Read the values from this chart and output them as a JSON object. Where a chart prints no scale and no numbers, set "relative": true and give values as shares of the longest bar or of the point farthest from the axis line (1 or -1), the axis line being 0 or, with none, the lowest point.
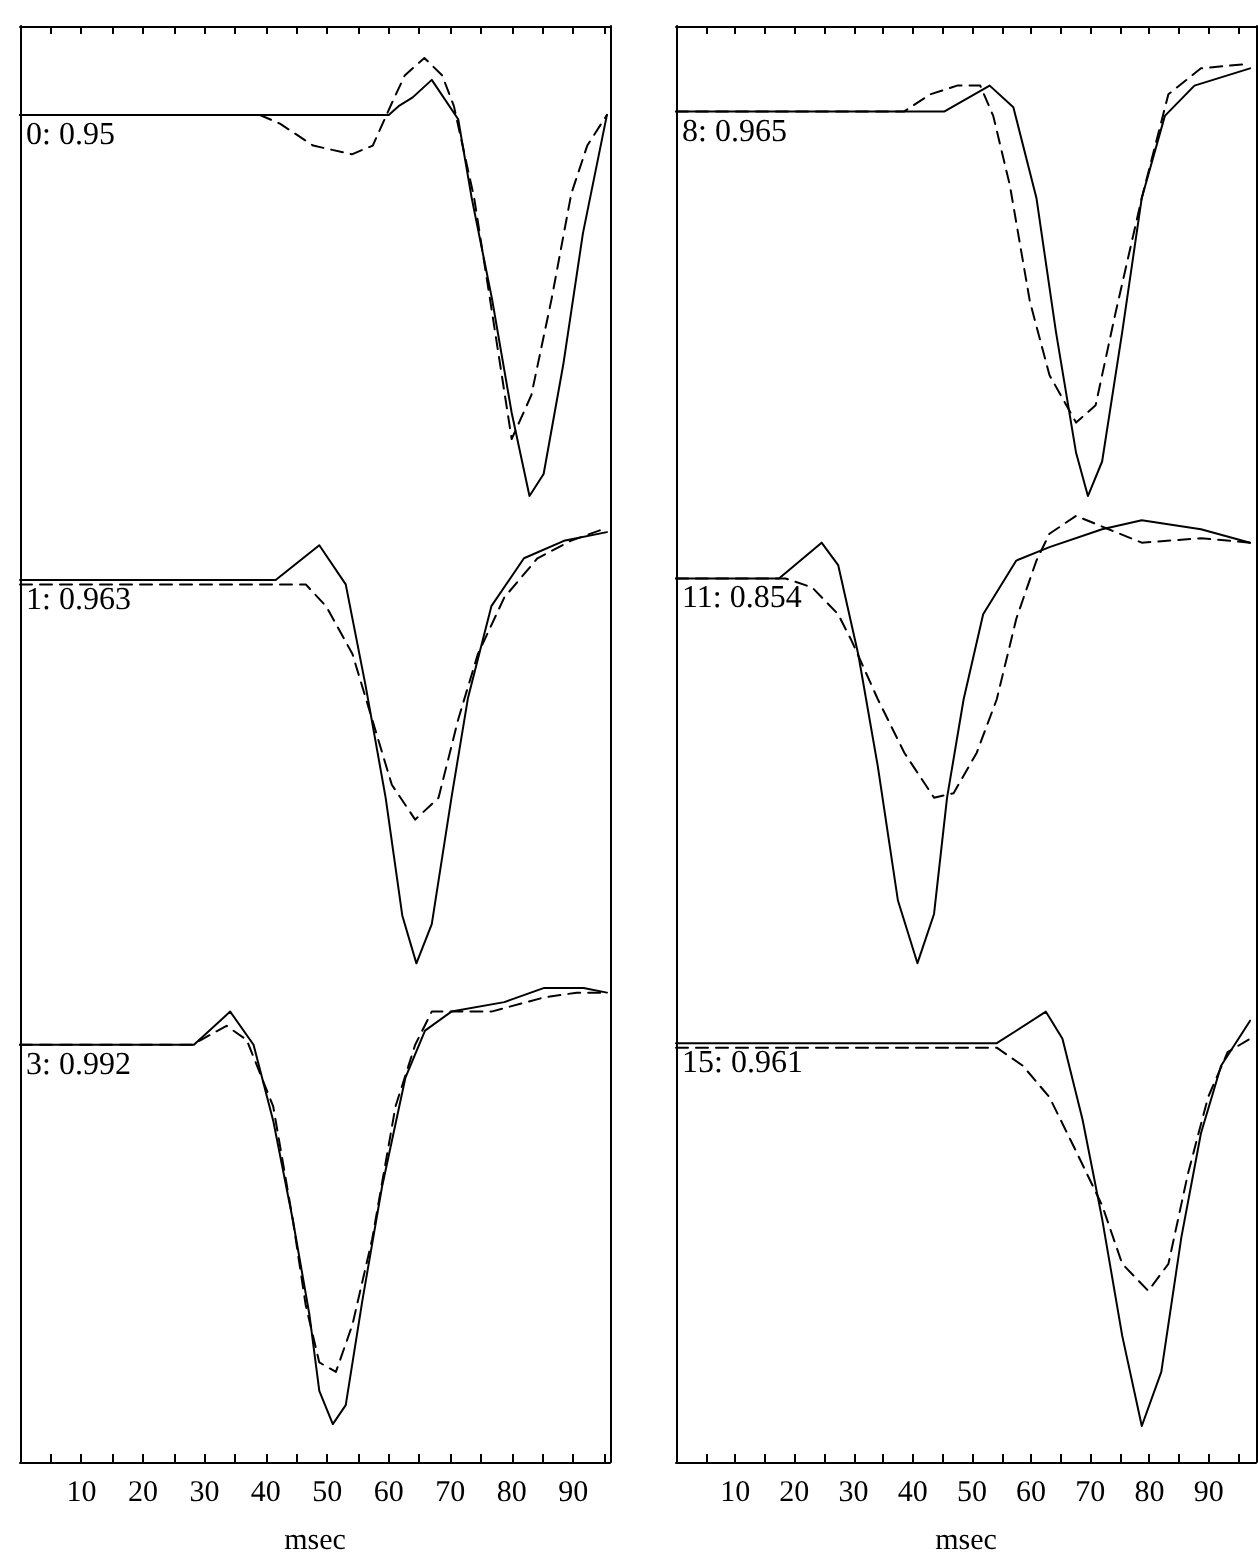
{
  "chart_data": [
    {
      "type": "line",
      "relative": true,
      "annotations": [
        "0: 0.95"
      ],
      "xlim": [
        0,
        96
      ],
      "tick_labels": false,
      "grid": false,
      "marker": "none",
      "series": [
        {
          "color": "#000000",
          "line_style": "solid",
          "x": [
            0,
            60,
            61.6,
            63.9,
            67,
            71.3,
            73.5,
            76.8,
            80,
            82.9,
            85.2,
            88.4,
            91.6,
            95.5
          ],
          "values": [
            0.87,
            0.87,
            0.89,
            0.91,
            0.95,
            0.86,
            0.68,
            0.45,
            0.19,
            0,
            0.05,
            0.3,
            0.6,
            0.87
          ]
        },
        {
          "color": "#000000",
          "line_style": "dashed",
          "x": [
            0,
            39,
            42.3,
            47.7,
            54,
            57.4,
            60.6,
            62.6,
            65.8,
            68.7,
            70.6,
            73.9,
            76.8,
            80,
            83.2,
            86.5,
            89.7,
            92.3,
            95.5
          ],
          "values": [
            0.87,
            0.87,
            0.85,
            0.8,
            0.78,
            0.8,
            0.9,
            0.96,
            1,
            0.96,
            0.89,
            0.68,
            0.42,
            0.13,
            0.23,
            0.45,
            0.69,
            0.8,
            0.87
          ]
        }
      ]
    },
    {
      "type": "line",
      "relative": true,
      "annotations": [
        "8: 0.965"
      ],
      "xlim": [
        0,
        98
      ],
      "tick_labels": false,
      "grid": false,
      "marker": "none",
      "series": [
        {
          "color": "#000000",
          "line_style": "solid",
          "x": [
            0,
            45.3,
            53,
            57,
            60.9,
            64.2,
            67.6,
            69.6,
            72,
            75.4,
            78.7,
            82.6,
            87.6,
            97
          ],
          "values": [
            0.89,
            0.89,
            0.95,
            0.9,
            0.69,
            0.38,
            0.1,
            0,
            0.08,
            0.38,
            0.69,
            0.88,
            0.95,
            0.99
          ]
        },
        {
          "color": "#000000",
          "line_style": "dashed",
          "x": [
            0,
            38.5,
            43,
            47.5,
            51.4,
            53.6,
            56.4,
            59.8,
            63.1,
            67.6,
            70.9,
            74.2,
            78.7,
            83.2,
            88.7,
            96.5
          ],
          "values": [
            0.89,
            0.89,
            0.93,
            0.95,
            0.95,
            0.88,
            0.72,
            0.45,
            0.28,
            0.17,
            0.21,
            0.42,
            0.69,
            0.93,
            0.99,
            1
          ]
        }
      ]
    },
    {
      "type": "line",
      "relative": true,
      "annotations": [
        "1: 0.963"
      ],
      "xlim": [
        0,
        96
      ],
      "tick_labels": false,
      "grid": false,
      "marker": "none",
      "series": [
        {
          "color": "#000000",
          "line_style": "solid",
          "x": [
            0,
            41.6,
            48.7,
            53,
            56.2,
            59.5,
            62.2,
            64.5,
            67,
            70.2,
            72.9,
            76.7,
            82,
            88.5,
            95.5
          ],
          "values": [
            0.88,
            0.88,
            0.96,
            0.87,
            0.64,
            0.38,
            0.11,
            0,
            0.09,
            0.38,
            0.61,
            0.82,
            0.93,
            0.97,
            0.99
          ]
        },
        {
          "color": "#000000",
          "line_style": "dashed",
          "x": [
            0,
            46.5,
            49.8,
            54.1,
            57.3,
            60.5,
            64.3,
            68.1,
            71.3,
            74.5,
            78.8,
            84.2,
            89.6,
            95.5
          ],
          "values": [
            0.87,
            0.87,
            0.82,
            0.71,
            0.56,
            0.41,
            0.33,
            0.38,
            0.56,
            0.71,
            0.84,
            0.93,
            0.97,
            1
          ]
        }
      ]
    },
    {
      "type": "line",
      "relative": true,
      "annotations": [
        "11: 0.854"
      ],
      "xlim": [
        0,
        98
      ],
      "tick_labels": false,
      "grid": false,
      "marker": "none",
      "series": [
        {
          "color": "#000000",
          "line_style": "solid",
          "x": [
            0,
            17.4,
            24.6,
            27.4,
            30.8,
            34.1,
            37.5,
            40.8,
            43.6,
            45.8,
            48.6,
            51.9,
            57.5,
            63.1,
            72,
            78.7,
            88.7,
            97
          ],
          "values": [
            0.86,
            0.86,
            0.94,
            0.89,
            0.69,
            0.44,
            0.14,
            0,
            0.11,
            0.37,
            0.59,
            0.78,
            0.9,
            0.93,
            0.97,
            0.99,
            0.97,
            0.94
          ]
        },
        {
          "color": "#000000",
          "line_style": "dashed",
          "x": [
            0,
            18.5,
            23,
            27.4,
            29.7,
            34.1,
            38.6,
            43.6,
            46.9,
            50.8,
            54.2,
            57.5,
            60.9,
            63.1,
            67.6,
            73.1,
            78.7,
            88.7,
            97
          ],
          "values": [
            0.86,
            0.86,
            0.84,
            0.78,
            0.72,
            0.59,
            0.47,
            0.37,
            0.38,
            0.47,
            0.59,
            0.77,
            0.9,
            0.96,
            1,
            0.97,
            0.94,
            0.95,
            0.94
          ]
        }
      ]
    },
    {
      "type": "line",
      "relative": true,
      "annotations": [
        "3: 0.992"
      ],
      "xlabel": "msec",
      "xlim": [
        0,
        96
      ],
      "xticks": [
        {
          "value": 5,
          "label": null
        },
        10,
        {
          "value": 15,
          "label": null
        },
        20,
        {
          "value": 25,
          "label": null
        },
        30,
        {
          "value": 35,
          "label": null
        },
        40,
        {
          "value": 45,
          "label": null
        },
        50,
        {
          "value": 55,
          "label": null
        },
        60,
        {
          "value": 65,
          "label": null
        },
        70,
        {
          "value": 75,
          "label": null
        },
        80,
        {
          "value": 85,
          "label": null
        },
        90,
        {
          "value": 95,
          "label": null
        }
      ],
      "tick_labels": "x",
      "grid": false,
      "marker": "none",
      "series": [
        {
          "color": "#000000",
          "line_style": "solid",
          "x": [
            0,
            28.3,
            34.2,
            38,
            41.2,
            44.4,
            47.1,
            48.7,
            50.9,
            53,
            55.7,
            58.9,
            62.7,
            65.9,
            70.2,
            78.8,
            85.3,
            91.7,
            95.5
          ],
          "values": [
            0.88,
            0.88,
            0.95,
            0.88,
            0.72,
            0.51,
            0.31,
            0.15,
            0.08,
            0.12,
            0.34,
            0.58,
            0.81,
            0.91,
            0.95,
            0.97,
            1,
            1,
            0.99
          ]
        },
        {
          "color": "#000000",
          "line_style": "dashed",
          "x": [
            0,
            28,
            29.4,
            33.6,
            36.9,
            41.2,
            44.4,
            46.5,
            48.7,
            51.4,
            54.1,
            57.3,
            61.1,
            64.3,
            67,
            76.7,
            85.3,
            90.6,
            95.5
          ],
          "values": [
            0.88,
            0.88,
            0.89,
            0.92,
            0.89,
            0.75,
            0.51,
            0.33,
            0.21,
            0.19,
            0.29,
            0.47,
            0.75,
            0.88,
            0.95,
            0.95,
            0.98,
            0.99,
            0.99
          ]
        }
      ]
    },
    {
      "type": "line",
      "relative": true,
      "annotations": [
        "15: 0.961"
      ],
      "xlabel": "msec",
      "xlim": [
        0,
        98
      ],
      "xticks": [
        {
          "value": 5,
          "label": null
        },
        10,
        {
          "value": 15,
          "label": null
        },
        20,
        {
          "value": 25,
          "label": null
        },
        30,
        {
          "value": 35,
          "label": null
        },
        40,
        {
          "value": 45,
          "label": null
        },
        50,
        {
          "value": 55,
          "label": null
        },
        60,
        {
          "value": 65,
          "label": null
        },
        70,
        {
          "value": 75,
          "label": null
        },
        80,
        {
          "value": 85,
          "label": null
        },
        90,
        {
          "value": 95,
          "label": null
        }
      ],
      "tick_labels": "x",
      "grid": false,
      "marker": "none",
      "series": [
        {
          "color": "#000000",
          "line_style": "solid",
          "x": [
            0,
            54.2,
            62.5,
            65.3,
            68.7,
            72,
            75.4,
            78.7,
            82,
            85.4,
            88.7,
            92.1,
            97
          ],
          "values": [
            0.93,
            0.93,
            1,
            0.94,
            0.76,
            0.54,
            0.28,
            0.08,
            0.2,
            0.5,
            0.73,
            0.88,
            0.98
          ]
        },
        {
          "color": "#000000",
          "line_style": "dashed",
          "x": [
            0,
            54.2,
            58.6,
            63.1,
            67.6,
            72,
            75.4,
            79.8,
            83.2,
            86.5,
            89.9,
            93.2,
            97
          ],
          "values": [
            0.92,
            0.92,
            0.88,
            0.81,
            0.69,
            0.57,
            0.44,
            0.38,
            0.44,
            0.64,
            0.81,
            0.91,
            0.94
          ]
        }
      ]
    }
  ]
}
